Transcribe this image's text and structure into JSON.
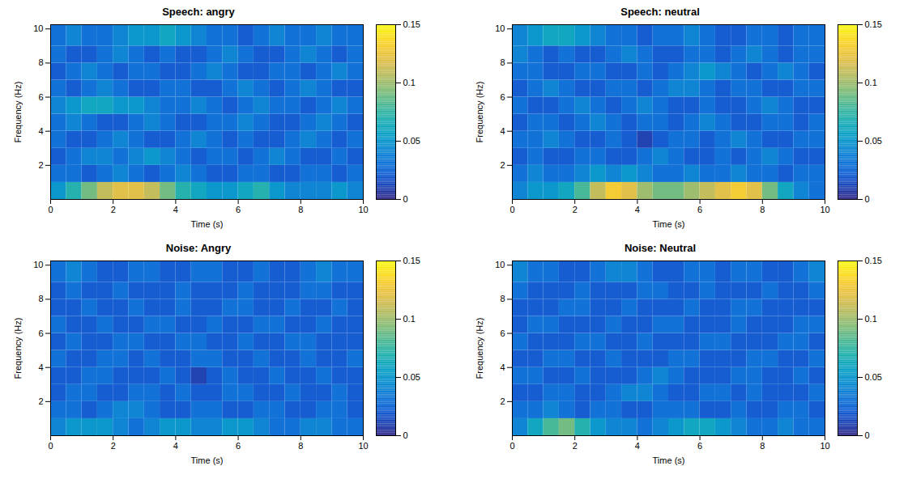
{
  "chart_data": [
    {
      "type": "heatmap",
      "title": "Speech: angry",
      "x_label": "Time (s)",
      "y_label": "Frequency (Hz)",
      "xlim": [
        0,
        10
      ],
      "xticks": [
        0,
        2,
        4,
        6,
        8,
        10
      ],
      "ylim": [
        0,
        10.25
      ],
      "yticks": [
        2,
        4,
        6,
        8,
        10
      ],
      "color": "parula",
      "colorbar_lim": [
        0,
        0.15
      ],
      "colorbar_ticks": [
        0,
        0.05,
        0.1,
        0.15
      ],
      "x_edges": [
        0,
        0.5,
        1,
        1.5,
        2,
        2.5,
        3,
        3.5,
        4,
        4.5,
        5,
        5.5,
        6,
        6.5,
        7,
        7.5,
        8,
        8.5,
        9,
        9.5,
        10
      ],
      "y_edges": [
        0,
        1,
        2,
        3,
        4,
        5,
        6,
        7,
        8,
        9,
        10.25
      ],
      "cells": [
        [
          0.05,
          0.07,
          0.09,
          0.11,
          0.12,
          0.12,
          0.11,
          0.09,
          0.07,
          0.06,
          0.05,
          0.05,
          0.06,
          0.07,
          0.05,
          0.04,
          0.04,
          0.04,
          0.05,
          0.04
        ],
        [
          0.03,
          0.03,
          0.02,
          0.03,
          0.04,
          0.03,
          0.02,
          0.03,
          0.04,
          0.03,
          0.02,
          0.02,
          0.03,
          0.03,
          0.02,
          0.02,
          0.03,
          0.03,
          0.02,
          0.03
        ],
        [
          0.02,
          0.03,
          0.04,
          0.04,
          0.03,
          0.04,
          0.05,
          0.04,
          0.03,
          0.02,
          0.03,
          0.03,
          0.02,
          0.03,
          0.04,
          0.03,
          0.02,
          0.02,
          0.03,
          0.02
        ],
        [
          0.03,
          0.02,
          0.02,
          0.03,
          0.04,
          0.03,
          0.02,
          0.02,
          0.03,
          0.04,
          0.03,
          0.02,
          0.03,
          0.02,
          0.02,
          0.03,
          0.04,
          0.03,
          0.02,
          0.03
        ],
        [
          0.03,
          0.04,
          0.03,
          0.02,
          0.02,
          0.03,
          0.04,
          0.03,
          0.02,
          0.02,
          0.03,
          0.03,
          0.04,
          0.03,
          0.02,
          0.02,
          0.03,
          0.04,
          0.03,
          0.02
        ],
        [
          0.04,
          0.05,
          0.06,
          0.06,
          0.05,
          0.05,
          0.04,
          0.03,
          0.03,
          0.04,
          0.03,
          0.02,
          0.03,
          0.04,
          0.03,
          0.03,
          0.02,
          0.03,
          0.04,
          0.03
        ],
        [
          0.03,
          0.02,
          0.03,
          0.04,
          0.03,
          0.02,
          0.02,
          0.03,
          0.03,
          0.02,
          0.02,
          0.03,
          0.04,
          0.03,
          0.02,
          0.03,
          0.04,
          0.03,
          0.02,
          0.02
        ],
        [
          0.02,
          0.03,
          0.04,
          0.03,
          0.02,
          0.03,
          0.03,
          0.02,
          0.02,
          0.03,
          0.04,
          0.03,
          0.02,
          0.02,
          0.03,
          0.03,
          0.02,
          0.03,
          0.04,
          0.03
        ],
        [
          0.03,
          0.02,
          0.02,
          0.03,
          0.04,
          0.03,
          0.02,
          0.03,
          0.02,
          0.02,
          0.03,
          0.04,
          0.03,
          0.02,
          0.02,
          0.03,
          0.04,
          0.03,
          0.02,
          0.03
        ],
        [
          0.03,
          0.04,
          0.03,
          0.03,
          0.04,
          0.05,
          0.05,
          0.06,
          0.05,
          0.04,
          0.03,
          0.03,
          0.02,
          0.03,
          0.04,
          0.03,
          0.03,
          0.04,
          0.03,
          0.03
        ]
      ]
    },
    {
      "type": "heatmap",
      "title": "Speech: neutral",
      "x_label": "Time (s)",
      "y_label": "Frequency (Hz)",
      "xlim": [
        0,
        10
      ],
      "xticks": [
        0,
        2,
        4,
        6,
        8,
        10
      ],
      "ylim": [
        0,
        10.25
      ],
      "yticks": [
        2,
        4,
        6,
        8,
        10
      ],
      "color": "parula",
      "colorbar_lim": [
        0,
        0.15
      ],
      "colorbar_ticks": [
        0,
        0.05,
        0.1,
        0.15
      ],
      "x_edges": [
        0,
        0.5,
        1,
        1.5,
        2,
        2.5,
        3,
        3.5,
        4,
        4.5,
        5,
        5.5,
        6,
        6.5,
        7,
        7.5,
        8,
        8.5,
        9,
        9.5,
        10
      ],
      "y_edges": [
        0,
        1,
        2,
        3,
        4,
        5,
        6,
        7,
        8,
        9,
        10.25
      ],
      "cells": [
        [
          0.04,
          0.05,
          0.05,
          0.06,
          0.08,
          0.11,
          0.13,
          0.12,
          0.1,
          0.09,
          0.09,
          0.1,
          0.11,
          0.12,
          0.13,
          0.12,
          0.09,
          0.06,
          0.04,
          0.03
        ],
        [
          0.03,
          0.04,
          0.03,
          0.03,
          0.04,
          0.05,
          0.04,
          0.05,
          0.04,
          0.03,
          0.03,
          0.04,
          0.03,
          0.03,
          0.04,
          0.03,
          0.03,
          0.02,
          0.03,
          0.03
        ],
        [
          0.02,
          0.03,
          0.02,
          0.02,
          0.03,
          0.03,
          0.02,
          0.02,
          0.03,
          0.04,
          0.03,
          0.02,
          0.02,
          0.03,
          0.02,
          0.03,
          0.04,
          0.03,
          0.02,
          0.02
        ],
        [
          0.03,
          0.03,
          0.04,
          0.03,
          0.02,
          0.02,
          0.03,
          0.02,
          0.01,
          0.02,
          0.03,
          0.03,
          0.02,
          0.03,
          0.04,
          0.03,
          0.02,
          0.02,
          0.03,
          0.03
        ],
        [
          0.02,
          0.03,
          0.03,
          0.02,
          0.03,
          0.04,
          0.03,
          0.02,
          0.03,
          0.03,
          0.02,
          0.03,
          0.04,
          0.03,
          0.02,
          0.02,
          0.03,
          0.03,
          0.02,
          0.03
        ],
        [
          0.03,
          0.02,
          0.02,
          0.03,
          0.04,
          0.03,
          0.02,
          0.03,
          0.04,
          0.03,
          0.02,
          0.02,
          0.03,
          0.02,
          0.02,
          0.03,
          0.04,
          0.03,
          0.02,
          0.02
        ],
        [
          0.02,
          0.03,
          0.04,
          0.03,
          0.02,
          0.02,
          0.03,
          0.03,
          0.02,
          0.03,
          0.04,
          0.04,
          0.03,
          0.02,
          0.03,
          0.03,
          0.02,
          0.02,
          0.03,
          0.03
        ],
        [
          0.03,
          0.03,
          0.02,
          0.02,
          0.03,
          0.03,
          0.02,
          0.02,
          0.03,
          0.02,
          0.03,
          0.04,
          0.05,
          0.04,
          0.03,
          0.02,
          0.03,
          0.04,
          0.03,
          0.02
        ],
        [
          0.04,
          0.03,
          0.02,
          0.03,
          0.02,
          0.02,
          0.03,
          0.04,
          0.03,
          0.02,
          0.02,
          0.03,
          0.03,
          0.02,
          0.03,
          0.04,
          0.03,
          0.02,
          0.03,
          0.03
        ],
        [
          0.04,
          0.05,
          0.06,
          0.06,
          0.05,
          0.04,
          0.03,
          0.03,
          0.02,
          0.03,
          0.03,
          0.04,
          0.03,
          0.02,
          0.02,
          0.03,
          0.03,
          0.02,
          0.03,
          0.03
        ]
      ]
    },
    {
      "type": "heatmap",
      "title": "Noise: Angry",
      "x_label": "Time (s)",
      "y_label": "Frequency (Hz)",
      "xlim": [
        0,
        10
      ],
      "xticks": [
        0,
        2,
        4,
        6,
        8,
        10
      ],
      "ylim": [
        0,
        10.25
      ],
      "yticks": [
        2,
        4,
        6,
        8,
        10
      ],
      "color": "parula",
      "colorbar_lim": [
        0,
        0.15
      ],
      "colorbar_ticks": [
        0,
        0.05,
        0.1,
        0.15
      ],
      "x_edges": [
        0,
        0.5,
        1,
        1.5,
        2,
        2.5,
        3,
        3.5,
        4,
        4.5,
        5,
        5.5,
        6,
        6.5,
        7,
        7.5,
        8,
        8.5,
        9,
        9.5,
        10
      ],
      "y_edges": [
        0,
        1,
        2,
        3,
        4,
        5,
        6,
        7,
        8,
        9,
        10.25
      ],
      "cells": [
        [
          0.04,
          0.05,
          0.05,
          0.05,
          0.04,
          0.03,
          0.04,
          0.05,
          0.05,
          0.04,
          0.04,
          0.05,
          0.05,
          0.04,
          0.03,
          0.03,
          0.04,
          0.04,
          0.03,
          0.03
        ],
        [
          0.03,
          0.03,
          0.02,
          0.03,
          0.04,
          0.04,
          0.03,
          0.02,
          0.02,
          0.03,
          0.03,
          0.02,
          0.02,
          0.03,
          0.03,
          0.02,
          0.02,
          0.03,
          0.03,
          0.02
        ],
        [
          0.02,
          0.03,
          0.03,
          0.02,
          0.02,
          0.03,
          0.03,
          0.02,
          0.03,
          0.02,
          0.02,
          0.03,
          0.03,
          0.02,
          0.02,
          0.03,
          0.02,
          0.02,
          0.03,
          0.02
        ],
        [
          0.02,
          0.02,
          0.03,
          0.03,
          0.02,
          0.02,
          0.02,
          0.03,
          0.02,
          0.01,
          0.02,
          0.03,
          0.02,
          0.02,
          0.03,
          0.02,
          0.02,
          0.03,
          0.02,
          0.02
        ],
        [
          0.03,
          0.02,
          0.02,
          0.03,
          0.03,
          0.02,
          0.03,
          0.02,
          0.02,
          0.03,
          0.03,
          0.02,
          0.02,
          0.03,
          0.02,
          0.02,
          0.03,
          0.02,
          0.02,
          0.03
        ],
        [
          0.02,
          0.03,
          0.02,
          0.02,
          0.03,
          0.03,
          0.02,
          0.02,
          0.03,
          0.03,
          0.02,
          0.02,
          0.03,
          0.02,
          0.02,
          0.03,
          0.03,
          0.02,
          0.02,
          0.02
        ],
        [
          0.03,
          0.02,
          0.02,
          0.03,
          0.02,
          0.02,
          0.03,
          0.03,
          0.02,
          0.02,
          0.03,
          0.02,
          0.02,
          0.03,
          0.03,
          0.02,
          0.02,
          0.03,
          0.02,
          0.02
        ],
        [
          0.02,
          0.02,
          0.03,
          0.02,
          0.02,
          0.03,
          0.02,
          0.02,
          0.03,
          0.02,
          0.02,
          0.03,
          0.03,
          0.02,
          0.02,
          0.03,
          0.02,
          0.02,
          0.03,
          0.02
        ],
        [
          0.02,
          0.03,
          0.02,
          0.02,
          0.03,
          0.02,
          0.02,
          0.02,
          0.03,
          0.02,
          0.02,
          0.02,
          0.03,
          0.02,
          0.02,
          0.02,
          0.03,
          0.03,
          0.02,
          0.02
        ],
        [
          0.03,
          0.04,
          0.03,
          0.02,
          0.02,
          0.03,
          0.03,
          0.02,
          0.02,
          0.03,
          0.03,
          0.02,
          0.02,
          0.03,
          0.02,
          0.02,
          0.03,
          0.04,
          0.03,
          0.03
        ]
      ]
    },
    {
      "type": "heatmap",
      "title": "Noise: Neutral",
      "x_label": "Time (s)",
      "y_label": "Frequency (Hz)",
      "xlim": [
        0,
        10
      ],
      "xticks": [
        0,
        2,
        4,
        6,
        8,
        10
      ],
      "ylim": [
        0,
        10.25
      ],
      "yticks": [
        2,
        4,
        6,
        8,
        10
      ],
      "color": "parula",
      "colorbar_lim": [
        0,
        0.15
      ],
      "colorbar_ticks": [
        0,
        0.05,
        0.1,
        0.15
      ],
      "x_edges": [
        0,
        0.5,
        1,
        1.5,
        2,
        2.5,
        3,
        3.5,
        4,
        4.5,
        5,
        5.5,
        6,
        6.5,
        7,
        7.5,
        8,
        8.5,
        9,
        9.5,
        10
      ],
      "y_edges": [
        0,
        1,
        2,
        3,
        4,
        5,
        6,
        7,
        8,
        9,
        10.25
      ],
      "cells": [
        [
          0.04,
          0.06,
          0.08,
          0.09,
          0.07,
          0.05,
          0.04,
          0.04,
          0.03,
          0.04,
          0.05,
          0.06,
          0.06,
          0.05,
          0.04,
          0.03,
          0.03,
          0.04,
          0.03,
          0.03
        ],
        [
          0.03,
          0.03,
          0.04,
          0.03,
          0.02,
          0.03,
          0.03,
          0.02,
          0.02,
          0.03,
          0.03,
          0.03,
          0.02,
          0.02,
          0.03,
          0.02,
          0.02,
          0.03,
          0.03,
          0.02
        ],
        [
          0.02,
          0.02,
          0.03,
          0.03,
          0.02,
          0.02,
          0.03,
          0.04,
          0.04,
          0.03,
          0.02,
          0.02,
          0.03,
          0.03,
          0.02,
          0.03,
          0.02,
          0.02,
          0.02,
          0.03
        ],
        [
          0.03,
          0.03,
          0.02,
          0.02,
          0.03,
          0.02,
          0.02,
          0.02,
          0.03,
          0.04,
          0.03,
          0.02,
          0.02,
          0.02,
          0.03,
          0.03,
          0.02,
          0.02,
          0.03,
          0.02
        ],
        [
          0.02,
          0.02,
          0.03,
          0.03,
          0.02,
          0.02,
          0.03,
          0.02,
          0.02,
          0.02,
          0.03,
          0.03,
          0.02,
          0.02,
          0.02,
          0.03,
          0.03,
          0.02,
          0.02,
          0.03
        ],
        [
          0.03,
          0.02,
          0.02,
          0.02,
          0.03,
          0.03,
          0.02,
          0.02,
          0.03,
          0.02,
          0.02,
          0.02,
          0.03,
          0.03,
          0.02,
          0.02,
          0.02,
          0.03,
          0.03,
          0.02
        ],
        [
          0.02,
          0.03,
          0.03,
          0.02,
          0.02,
          0.02,
          0.03,
          0.02,
          0.02,
          0.03,
          0.03,
          0.02,
          0.02,
          0.02,
          0.03,
          0.02,
          0.02,
          0.02,
          0.03,
          0.03
        ],
        [
          0.02,
          0.02,
          0.02,
          0.03,
          0.03,
          0.02,
          0.02,
          0.03,
          0.02,
          0.02,
          0.02,
          0.03,
          0.02,
          0.02,
          0.03,
          0.03,
          0.02,
          0.02,
          0.02,
          0.02
        ],
        [
          0.03,
          0.02,
          0.02,
          0.02,
          0.03,
          0.02,
          0.02,
          0.02,
          0.03,
          0.03,
          0.02,
          0.02,
          0.03,
          0.02,
          0.02,
          0.02,
          0.03,
          0.02,
          0.02,
          0.03
        ],
        [
          0.04,
          0.03,
          0.03,
          0.02,
          0.02,
          0.03,
          0.04,
          0.04,
          0.03,
          0.02,
          0.02,
          0.03,
          0.03,
          0.02,
          0.03,
          0.03,
          0.02,
          0.02,
          0.03,
          0.04
        ]
      ]
    }
  ]
}
